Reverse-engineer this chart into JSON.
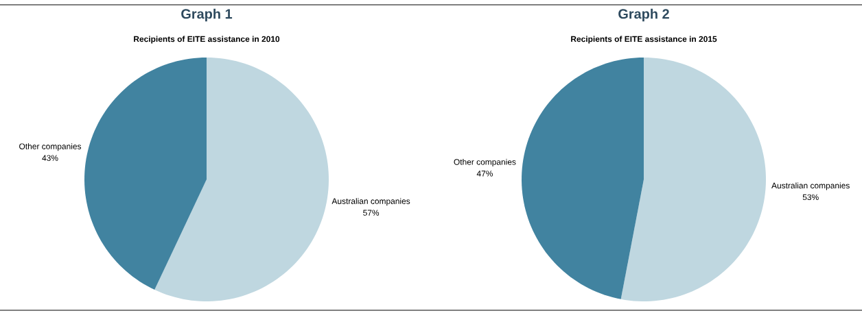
{
  "chart_data": [
    {
      "type": "pie",
      "title": "Graph 1",
      "subtitle": "Recipients of EITE assistance in 2010",
      "categories": [
        "Australian companies",
        "Other companies"
      ],
      "values": [
        57,
        43
      ],
      "colors": [
        "#bfd7e0",
        "#4183a0"
      ],
      "value_labels": [
        "57%",
        "43%"
      ]
    },
    {
      "type": "pie",
      "title": "Graph 2",
      "subtitle": "Recipients of EITE assistance in 2015",
      "categories": [
        "Australian companies",
        "Other companies"
      ],
      "values": [
        53,
        47
      ],
      "colors": [
        "#bfd7e0",
        "#4183a0"
      ],
      "value_labels": [
        "53%",
        "47%"
      ]
    }
  ]
}
